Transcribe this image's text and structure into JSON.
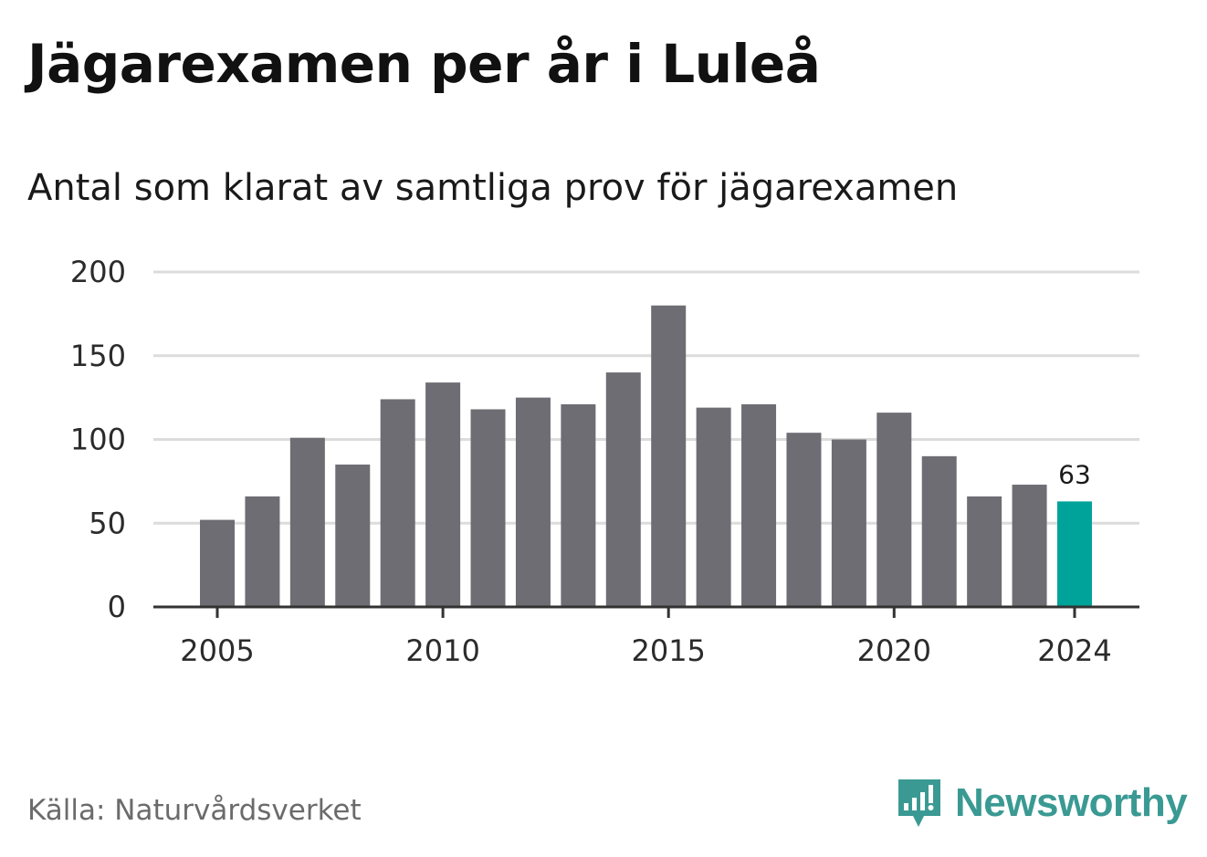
{
  "title": "Jägarexamen per år i Luleå",
  "subtitle": "Antal som klarat av samtliga prov för jägarexamen",
  "source": "Källa: Naturvårdsverket",
  "brand": {
    "name": "Newsworthy",
    "icon": "newsworthy-logo-icon"
  },
  "colors": {
    "bar": "#6e6d73",
    "highlight": "#00a39a",
    "grid": "#dcdcdc",
    "axis": "#333333"
  },
  "chart_data": {
    "type": "bar",
    "categories": [
      "2005",
      "2006",
      "2007",
      "2008",
      "2009",
      "2010",
      "2011",
      "2012",
      "2013",
      "2014",
      "2015",
      "2016",
      "2017",
      "2018",
      "2019",
      "2020",
      "2021",
      "2022",
      "2023",
      "2024"
    ],
    "values": [
      52,
      66,
      101,
      85,
      124,
      134,
      118,
      125,
      121,
      140,
      180,
      119,
      121,
      104,
      100,
      116,
      90,
      66,
      73,
      63
    ],
    "highlight_category": "2024",
    "highlight_label": "63",
    "y_ticks": [
      "0",
      "50",
      "100",
      "150",
      "200"
    ],
    "x_ticks": [
      "2005",
      "2010",
      "2015",
      "2020",
      "2024"
    ],
    "ylim": [
      0,
      200
    ],
    "grid": true,
    "legend": false
  }
}
